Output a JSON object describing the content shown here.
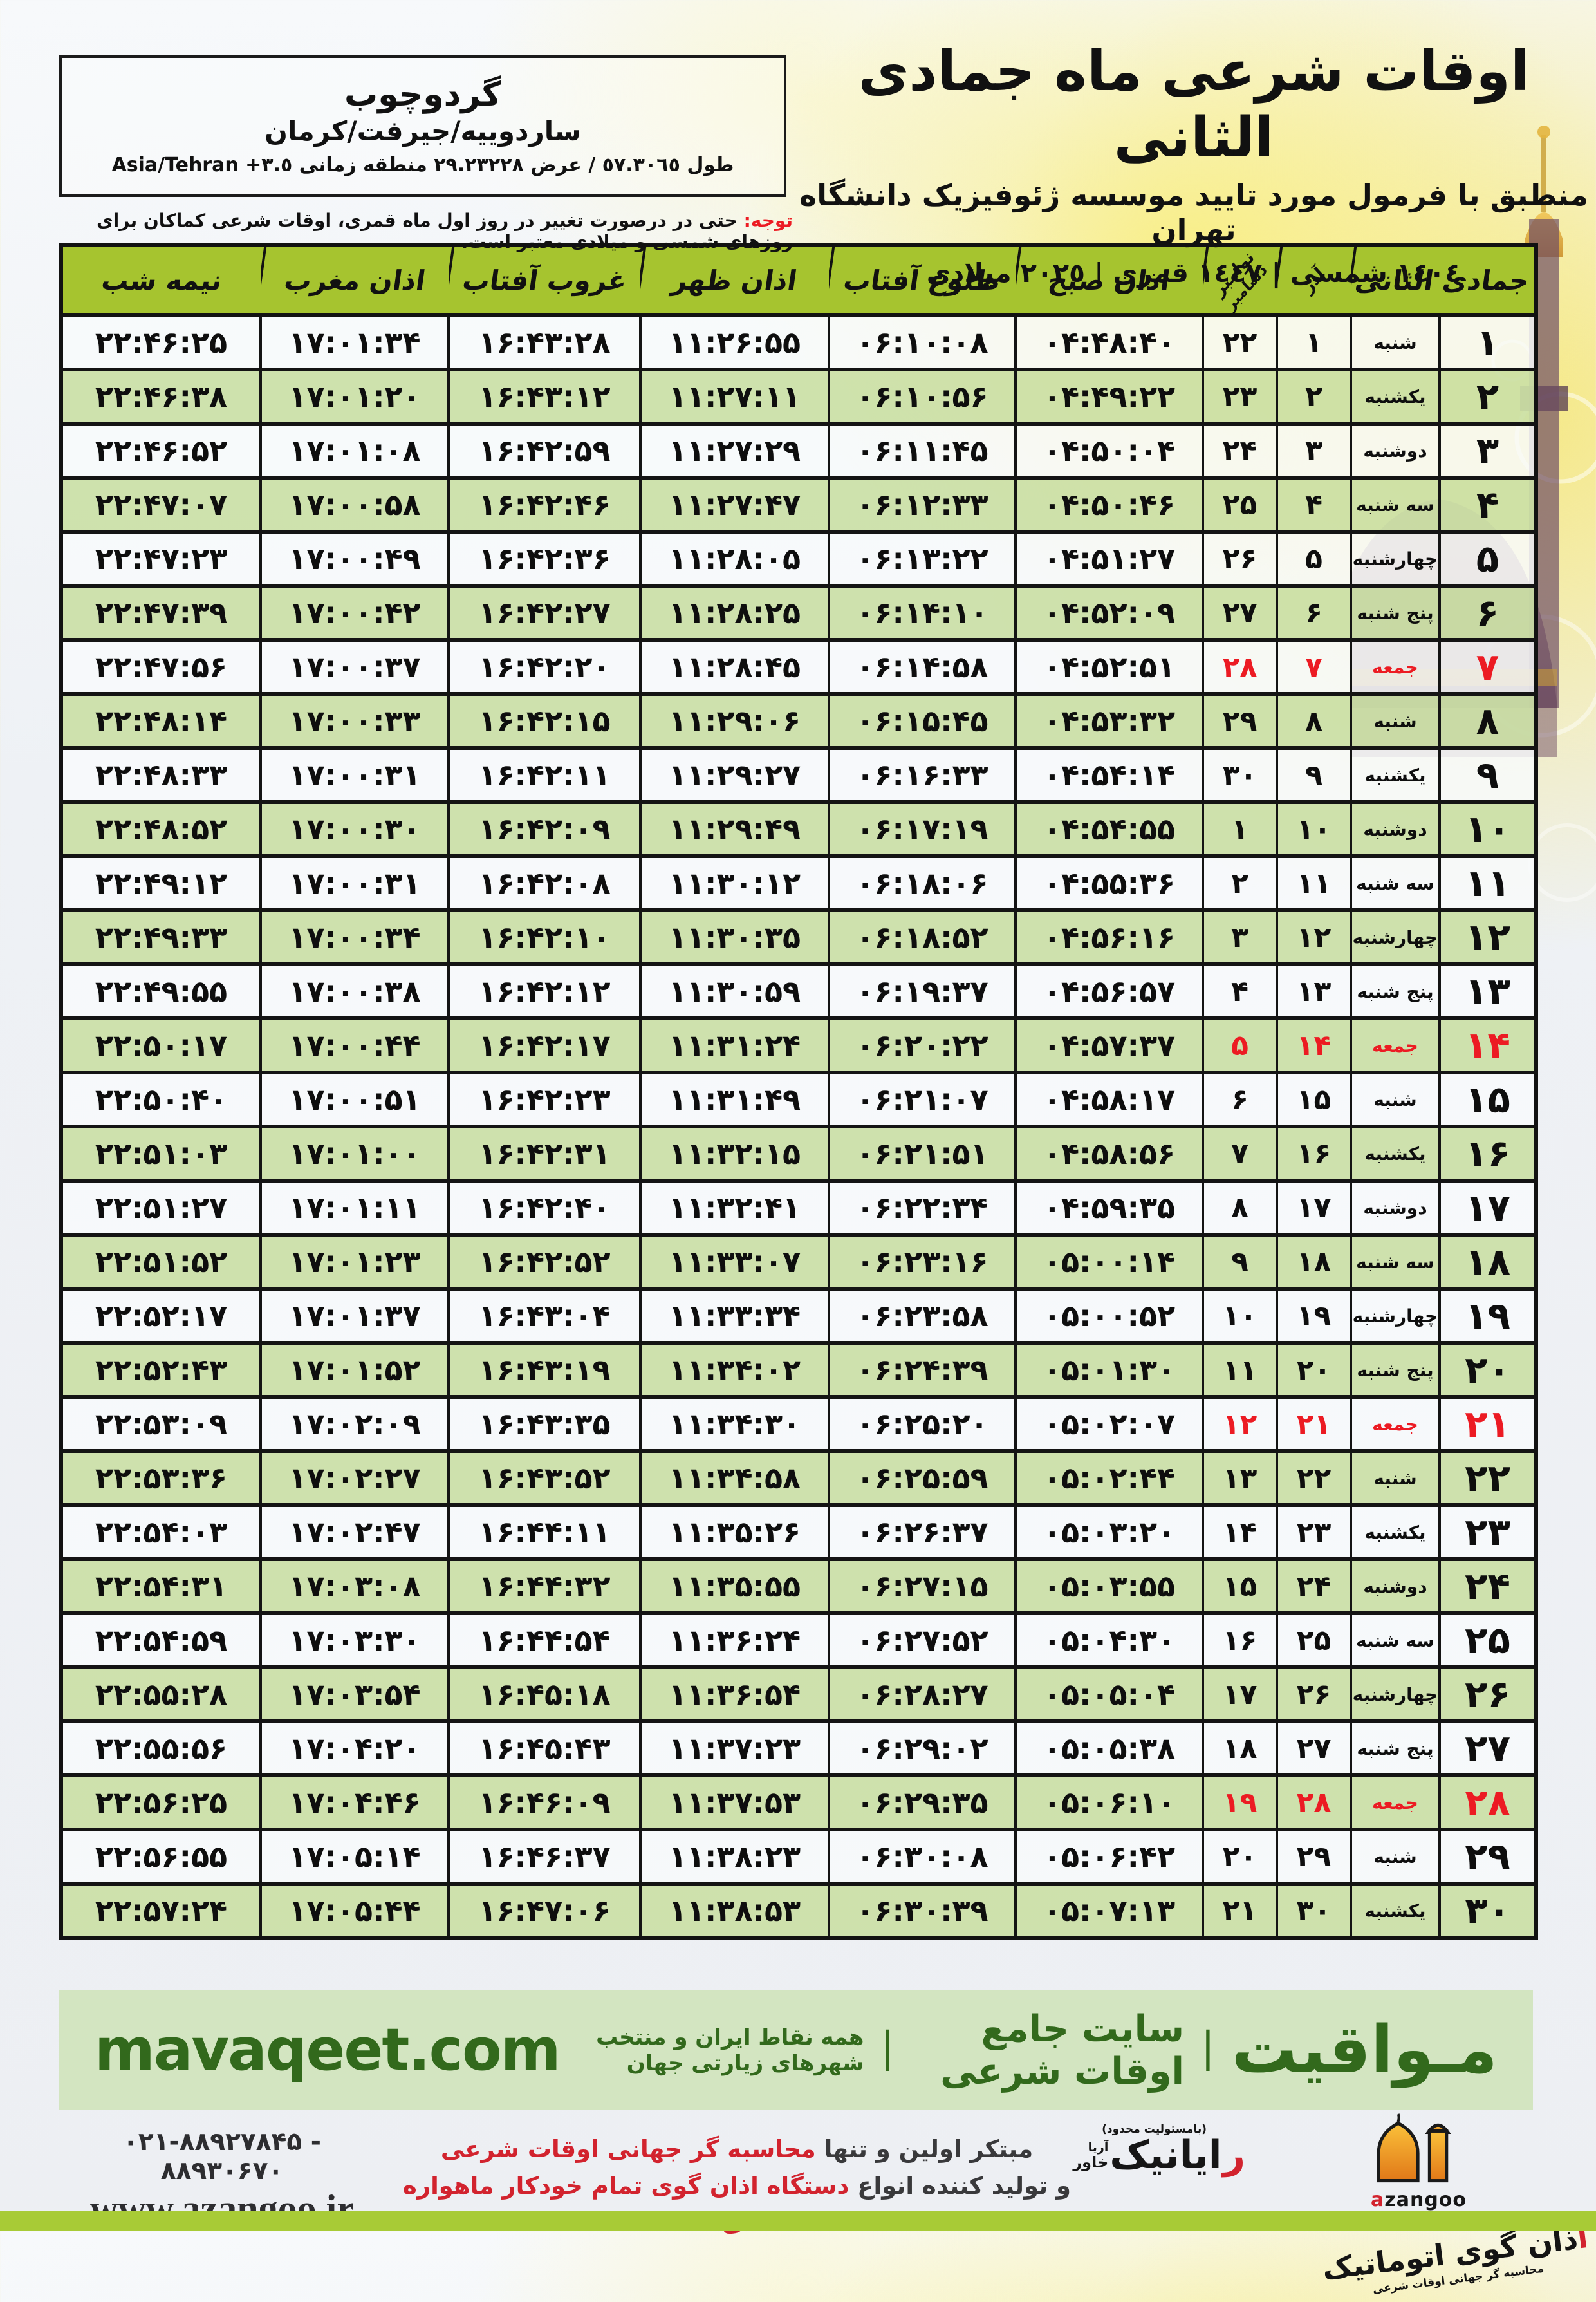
{
  "header": {
    "title": "اوقات شرعی ماه جمادی الثانی",
    "subtitle": "منطبق با فرمول مورد تایید موسسه ژئوفیزیک دانشگاه تهران",
    "dates_line": "١٤٠٤ شمسی | ١٤٤٧ قمری | ٢٠٢٥ میلادی"
  },
  "location_box": {
    "name": "گردوچوب",
    "region": "ساردوییه/جیرفت/کرمان",
    "coords": "طول ٥٧.٣٠٦٥ / عرض ٢٩.٢٣٢٢٨ منطقه زمانی",
    "timezone": "Asia/Tehran +٣.٥"
  },
  "notice": {
    "label": "توجه:",
    "text": " حتی در درصورت تغییر در روز اول ماه قمری، اوقات شرعی کماکان برای روزهای شمسی و میلادی معتبر است."
  },
  "table": {
    "headers": {
      "month": "جمادی الثانی",
      "azar": "آذر",
      "nov": "نوامبر",
      "dec": "دسامبر",
      "fajr": "اذان صبح",
      "sunrise": "طلوع آفتاب",
      "dhuhr": "اذان ظهر",
      "sunset": "غروب آفتاب",
      "maghrib": "اذان مغرب",
      "midnight": "نیمه شب"
    },
    "rows": [
      {
        "day": "۱",
        "weekday": "شنبه",
        "azar": "۱",
        "nov": "۲۲",
        "fajr": "۰۴:۴۸:۴۰",
        "sunrise": "۰۶:۱۰:۰۸",
        "dhuhr": "۱۱:۲۶:۵۵",
        "sunset": "۱۶:۴۳:۲۸",
        "maghrib": "۱۷:۰۱:۳۴",
        "midnight": "۲۲:۴۶:۲۵",
        "friday": false
      },
      {
        "day": "۲",
        "weekday": "یکشنبه",
        "azar": "۲",
        "nov": "۲۳",
        "fajr": "۰۴:۴۹:۲۲",
        "sunrise": "۰۶:۱۰:۵۶",
        "dhuhr": "۱۱:۲۷:۱۱",
        "sunset": "۱۶:۴۳:۱۲",
        "maghrib": "۱۷:۰۱:۲۰",
        "midnight": "۲۲:۴۶:۳۸",
        "friday": false
      },
      {
        "day": "۳",
        "weekday": "دوشنبه",
        "azar": "۳",
        "nov": "۲۴",
        "fajr": "۰۴:۵۰:۰۴",
        "sunrise": "۰۶:۱۱:۴۵",
        "dhuhr": "۱۱:۲۷:۲۹",
        "sunset": "۱۶:۴۲:۵۹",
        "maghrib": "۱۷:۰۱:۰۸",
        "midnight": "۲۲:۴۶:۵۲",
        "friday": false
      },
      {
        "day": "۴",
        "weekday": "سه شنبه",
        "azar": "۴",
        "nov": "۲۵",
        "fajr": "۰۴:۵۰:۴۶",
        "sunrise": "۰۶:۱۲:۳۳",
        "dhuhr": "۱۱:۲۷:۴۷",
        "sunset": "۱۶:۴۲:۴۶",
        "maghrib": "۱۷:۰۰:۵۸",
        "midnight": "۲۲:۴۷:۰۷",
        "friday": false
      },
      {
        "day": "۵",
        "weekday": "چهارشنبه",
        "azar": "۵",
        "nov": "۲۶",
        "fajr": "۰۴:۵۱:۲۷",
        "sunrise": "۰۶:۱۳:۲۲",
        "dhuhr": "۱۱:۲۸:۰۵",
        "sunset": "۱۶:۴۲:۳۶",
        "maghrib": "۱۷:۰۰:۴۹",
        "midnight": "۲۲:۴۷:۲۳",
        "friday": false
      },
      {
        "day": "۶",
        "weekday": "پنج شنبه",
        "azar": "۶",
        "nov": "۲۷",
        "fajr": "۰۴:۵۲:۰۹",
        "sunrise": "۰۶:۱۴:۱۰",
        "dhuhr": "۱۱:۲۸:۲۵",
        "sunset": "۱۶:۴۲:۲۷",
        "maghrib": "۱۷:۰۰:۴۲",
        "midnight": "۲۲:۴۷:۳۹",
        "friday": false
      },
      {
        "day": "۷",
        "weekday": "جمعه",
        "azar": "۷",
        "nov": "۲۸",
        "fajr": "۰۴:۵۲:۵۱",
        "sunrise": "۰۶:۱۴:۵۸",
        "dhuhr": "۱۱:۲۸:۴۵",
        "sunset": "۱۶:۴۲:۲۰",
        "maghrib": "۱۷:۰۰:۳۷",
        "midnight": "۲۲:۴۷:۵۶",
        "friday": true
      },
      {
        "day": "۸",
        "weekday": "شنبه",
        "azar": "۸",
        "nov": "۲۹",
        "fajr": "۰۴:۵۳:۳۲",
        "sunrise": "۰۶:۱۵:۴۵",
        "dhuhr": "۱۱:۲۹:۰۶",
        "sunset": "۱۶:۴۲:۱۵",
        "maghrib": "۱۷:۰۰:۳۳",
        "midnight": "۲۲:۴۸:۱۴",
        "friday": false
      },
      {
        "day": "۹",
        "weekday": "یکشنبه",
        "azar": "۹",
        "nov": "۳۰",
        "fajr": "۰۴:۵۴:۱۴",
        "sunrise": "۰۶:۱۶:۳۳",
        "dhuhr": "۱۱:۲۹:۲۷",
        "sunset": "۱۶:۴۲:۱۱",
        "maghrib": "۱۷:۰۰:۳۱",
        "midnight": "۲۲:۴۸:۳۳",
        "friday": false
      },
      {
        "day": "۱۰",
        "weekday": "دوشنبه",
        "azar": "۱۰",
        "nov": "۱",
        "fajr": "۰۴:۵۴:۵۵",
        "sunrise": "۰۶:۱۷:۱۹",
        "dhuhr": "۱۱:۲۹:۴۹",
        "sunset": "۱۶:۴۲:۰۹",
        "maghrib": "۱۷:۰۰:۳۰",
        "midnight": "۲۲:۴۸:۵۲",
        "friday": false
      },
      {
        "day": "۱۱",
        "weekday": "سه شنبه",
        "azar": "۱۱",
        "nov": "۲",
        "fajr": "۰۴:۵۵:۳۶",
        "sunrise": "۰۶:۱۸:۰۶",
        "dhuhr": "۱۱:۳۰:۱۲",
        "sunset": "۱۶:۴۲:۰۸",
        "maghrib": "۱۷:۰۰:۳۱",
        "midnight": "۲۲:۴۹:۱۲",
        "friday": false
      },
      {
        "day": "۱۲",
        "weekday": "چهارشنبه",
        "azar": "۱۲",
        "nov": "۳",
        "fajr": "۰۴:۵۶:۱۶",
        "sunrise": "۰۶:۱۸:۵۲",
        "dhuhr": "۱۱:۳۰:۳۵",
        "sunset": "۱۶:۴۲:۱۰",
        "maghrib": "۱۷:۰۰:۳۴",
        "midnight": "۲۲:۴۹:۳۳",
        "friday": false
      },
      {
        "day": "۱۳",
        "weekday": "پنج شنبه",
        "azar": "۱۳",
        "nov": "۴",
        "fajr": "۰۴:۵۶:۵۷",
        "sunrise": "۰۶:۱۹:۳۷",
        "dhuhr": "۱۱:۳۰:۵۹",
        "sunset": "۱۶:۴۲:۱۲",
        "maghrib": "۱۷:۰۰:۳۸",
        "midnight": "۲۲:۴۹:۵۵",
        "friday": false
      },
      {
        "day": "۱۴",
        "weekday": "جمعه",
        "azar": "۱۴",
        "nov": "۵",
        "fajr": "۰۴:۵۷:۳۷",
        "sunrise": "۰۶:۲۰:۲۲",
        "dhuhr": "۱۱:۳۱:۲۴",
        "sunset": "۱۶:۴۲:۱۷",
        "maghrib": "۱۷:۰۰:۴۴",
        "midnight": "۲۲:۵۰:۱۷",
        "friday": true
      },
      {
        "day": "۱۵",
        "weekday": "شنبه",
        "azar": "۱۵",
        "nov": "۶",
        "fajr": "۰۴:۵۸:۱۷",
        "sunrise": "۰۶:۲۱:۰۷",
        "dhuhr": "۱۱:۳۱:۴۹",
        "sunset": "۱۶:۴۲:۲۳",
        "maghrib": "۱۷:۰۰:۵۱",
        "midnight": "۲۲:۵۰:۴۰",
        "friday": false
      },
      {
        "day": "۱۶",
        "weekday": "یکشنبه",
        "azar": "۱۶",
        "nov": "۷",
        "fajr": "۰۴:۵۸:۵۶",
        "sunrise": "۰۶:۲۱:۵۱",
        "dhuhr": "۱۱:۳۲:۱۵",
        "sunset": "۱۶:۴۲:۳۱",
        "maghrib": "۱۷:۰۱:۰۰",
        "midnight": "۲۲:۵۱:۰۳",
        "friday": false
      },
      {
        "day": "۱۷",
        "weekday": "دوشنبه",
        "azar": "۱۷",
        "nov": "۸",
        "fajr": "۰۴:۵۹:۳۵",
        "sunrise": "۰۶:۲۲:۳۴",
        "dhuhr": "۱۱:۳۲:۴۱",
        "sunset": "۱۶:۴۲:۴۰",
        "maghrib": "۱۷:۰۱:۱۱",
        "midnight": "۲۲:۵۱:۲۷",
        "friday": false
      },
      {
        "day": "۱۸",
        "weekday": "سه شنبه",
        "azar": "۱۸",
        "nov": "۹",
        "fajr": "۰۵:۰۰:۱۴",
        "sunrise": "۰۶:۲۳:۱۶",
        "dhuhr": "۱۱:۳۳:۰۷",
        "sunset": "۱۶:۴۲:۵۲",
        "maghrib": "۱۷:۰۱:۲۳",
        "midnight": "۲۲:۵۱:۵۲",
        "friday": false
      },
      {
        "day": "۱۹",
        "weekday": "چهارشنبه",
        "azar": "۱۹",
        "nov": "۱۰",
        "fajr": "۰۵:۰۰:۵۲",
        "sunrise": "۰۶:۲۳:۵۸",
        "dhuhr": "۱۱:۳۳:۳۴",
        "sunset": "۱۶:۴۳:۰۴",
        "maghrib": "۱۷:۰۱:۳۷",
        "midnight": "۲۲:۵۲:۱۷",
        "friday": false
      },
      {
        "day": "۲۰",
        "weekday": "پنج شنبه",
        "azar": "۲۰",
        "nov": "۱۱",
        "fajr": "۰۵:۰۱:۳۰",
        "sunrise": "۰۶:۲۴:۳۹",
        "dhuhr": "۱۱:۳۴:۰۲",
        "sunset": "۱۶:۴۳:۱۹",
        "maghrib": "۱۷:۰۱:۵۲",
        "midnight": "۲۲:۵۲:۴۳",
        "friday": false
      },
      {
        "day": "۲۱",
        "weekday": "جمعه",
        "azar": "۲۱",
        "nov": "۱۲",
        "fajr": "۰۵:۰۲:۰۷",
        "sunrise": "۰۶:۲۵:۲۰",
        "dhuhr": "۱۱:۳۴:۳۰",
        "sunset": "۱۶:۴۳:۳۵",
        "maghrib": "۱۷:۰۲:۰۹",
        "midnight": "۲۲:۵۳:۰۹",
        "friday": true
      },
      {
        "day": "۲۲",
        "weekday": "شنبه",
        "azar": "۲۲",
        "nov": "۱۳",
        "fajr": "۰۵:۰۲:۴۴",
        "sunrise": "۰۶:۲۵:۵۹",
        "dhuhr": "۱۱:۳۴:۵۸",
        "sunset": "۱۶:۴۳:۵۲",
        "maghrib": "۱۷:۰۲:۲۷",
        "midnight": "۲۲:۵۳:۳۶",
        "friday": false
      },
      {
        "day": "۲۳",
        "weekday": "یکشنبه",
        "azar": "۲۳",
        "nov": "۱۴",
        "fajr": "۰۵:۰۳:۲۰",
        "sunrise": "۰۶:۲۶:۳۷",
        "dhuhr": "۱۱:۳۵:۲۶",
        "sunset": "۱۶:۴۴:۱۱",
        "maghrib": "۱۷:۰۲:۴۷",
        "midnight": "۲۲:۵۴:۰۳",
        "friday": false
      },
      {
        "day": "۲۴",
        "weekday": "دوشنبه",
        "azar": "۲۴",
        "nov": "۱۵",
        "fajr": "۰۵:۰۳:۵۵",
        "sunrise": "۰۶:۲۷:۱۵",
        "dhuhr": "۱۱:۳۵:۵۵",
        "sunset": "۱۶:۴۴:۳۲",
        "maghrib": "۱۷:۰۳:۰۸",
        "midnight": "۲۲:۵۴:۳۱",
        "friday": false
      },
      {
        "day": "۲۵",
        "weekday": "سه شنبه",
        "azar": "۲۵",
        "nov": "۱۶",
        "fajr": "۰۵:۰۴:۳۰",
        "sunrise": "۰۶:۲۷:۵۲",
        "dhuhr": "۱۱:۳۶:۲۴",
        "sunset": "۱۶:۴۴:۵۴",
        "maghrib": "۱۷:۰۳:۳۰",
        "midnight": "۲۲:۵۴:۵۹",
        "friday": false
      },
      {
        "day": "۲۶",
        "weekday": "چهارشنبه",
        "azar": "۲۶",
        "nov": "۱۷",
        "fajr": "۰۵:۰۵:۰۴",
        "sunrise": "۰۶:۲۸:۲۷",
        "dhuhr": "۱۱:۳۶:۵۴",
        "sunset": "۱۶:۴۵:۱۸",
        "maghrib": "۱۷:۰۳:۵۴",
        "midnight": "۲۲:۵۵:۲۸",
        "friday": false
      },
      {
        "day": "۲۷",
        "weekday": "پنج شنبه",
        "azar": "۲۷",
        "nov": "۱۸",
        "fajr": "۰۵:۰۵:۳۸",
        "sunrise": "۰۶:۲۹:۰۲",
        "dhuhr": "۱۱:۳۷:۲۳",
        "sunset": "۱۶:۴۵:۴۳",
        "maghrib": "۱۷:۰۴:۲۰",
        "midnight": "۲۲:۵۵:۵۶",
        "friday": false
      },
      {
        "day": "۲۸",
        "weekday": "جمعه",
        "azar": "۲۸",
        "nov": "۱۹",
        "fajr": "۰۵:۰۶:۱۰",
        "sunrise": "۰۶:۲۹:۳۵",
        "dhuhr": "۱۱:۳۷:۵۳",
        "sunset": "۱۶:۴۶:۰۹",
        "maghrib": "۱۷:۰۴:۴۶",
        "midnight": "۲۲:۵۶:۲۵",
        "friday": true
      },
      {
        "day": "۲۹",
        "weekday": "شنبه",
        "azar": "۲۹",
        "nov": "۲۰",
        "fajr": "۰۵:۰۶:۴۲",
        "sunrise": "۰۶:۳۰:۰۸",
        "dhuhr": "۱۱:۳۸:۲۳",
        "sunset": "۱۶:۴۶:۳۷",
        "maghrib": "۱۷:۰۵:۱۴",
        "midnight": "۲۲:۵۶:۵۵",
        "friday": false
      },
      {
        "day": "۳۰",
        "weekday": "یکشنبه",
        "azar": "۳۰",
        "nov": "۲۱",
        "fajr": "۰۵:۰۷:۱۳",
        "sunrise": "۰۶:۳۰:۳۹",
        "dhuhr": "۱۱:۳۸:۵۳",
        "sunset": "۱۶:۴۷:۰۶",
        "maghrib": "۱۷:۰۵:۴۴",
        "midnight": "۲۲:۵۷:۲۴",
        "friday": false
      }
    ]
  },
  "mavaqeet": {
    "brand": "مـواقیت",
    "separator": "|",
    "tagline1": "سایت جامع اوقات شرعی",
    "tagline2": "همه نقاط ایران و منتخب شهرهای زیارتی جهان",
    "url": "mavaqeet.com"
  },
  "footer": {
    "promo_line1_black": "مبتکر اولین و تنها ",
    "promo_line1_red": "محاسبه گر جهانی اوقات شرعی",
    "promo_line2_black": "و تولید کننده انواع ",
    "promo_line2_red": "دستگاه اذان گوی تمام خودکار ماهواره ای",
    "rayanik_note": "(بامسئولیت محدود)",
    "rayanik_first": "ر",
    "rayanik_rest": "ایانیک",
    "rayanik_sub1": "آریا",
    "rayanik_sub2": "خاور",
    "azangoo_first": "ا",
    "azangoo_rest": "ذان گوی اتوماتیک",
    "azangoo_tagline": "محاسبه گر جهانی اوقات شرعی",
    "azangoo_latin_a": "a",
    "azangoo_latin_rest": "zangoo",
    "phone": "۰۲۱-۸۸۹۲۷۸۴۵ - ۸۸۹۳۰۶۷۰",
    "website": "www.azangoo.ir"
  },
  "colors": {
    "header_band_green": "#a6c42f",
    "row_green": "#cbe0a6",
    "friday_red": "#ec1b23",
    "mavaqeet_band": "#d3e5c1",
    "mavaqeet_text": "#32691c",
    "bottom_bar": "#a8cb36",
    "promo_red": "#d2232e"
  }
}
